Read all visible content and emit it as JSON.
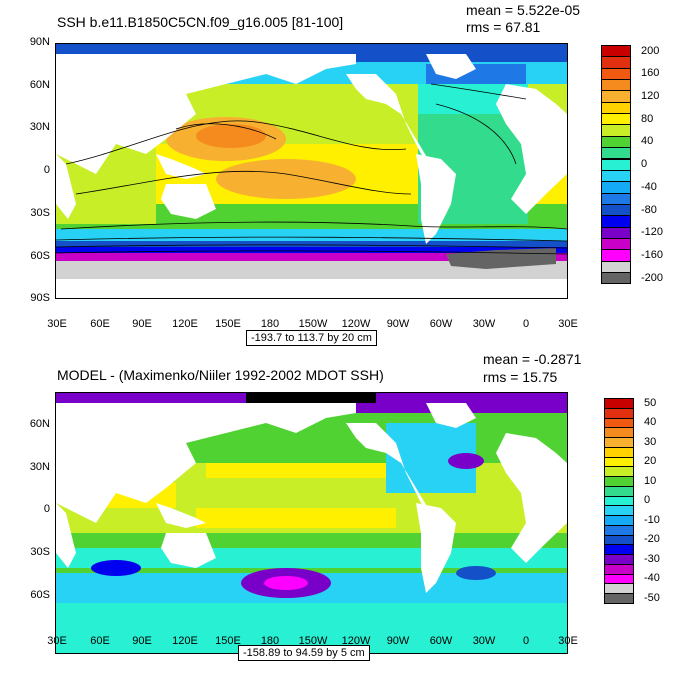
{
  "panels": [
    {
      "title": "SSH b.e11.B1850C5CN.f09_g16.005 [81-100]",
      "mean": "mean = 5.522e-05",
      "rms": "rms = 67.81",
      "range": "-193.7 to 113.7 by 20 cm",
      "lat_labels": [
        "90N",
        "60N",
        "30N",
        "0",
        "30S",
        "60S",
        "90S"
      ],
      "lon_labels": [
        "30E",
        "60E",
        "90E",
        "120E",
        "150E",
        "180",
        "150W",
        "120W",
        "90W",
        "60W",
        "30W",
        "0",
        "30E"
      ],
      "colorbar": {
        "labels": [
          "200",
          "160",
          "120",
          "80",
          "40",
          "0",
          "-40",
          "-80",
          "-120",
          "-160",
          "-200"
        ],
        "colors": [
          "#c80000",
          "#e03010",
          "#f05a10",
          "#f58a1e",
          "#f8b030",
          "#ffd200",
          "#fff000",
          "#c8ee28",
          "#50d232",
          "#32dc8c",
          "#28f0d2",
          "#28d2f5",
          "#14aaf5",
          "#1e78e6",
          "#1450c8",
          "#0000f0",
          "#7800c8",
          "#c800c8",
          "#ff00ff",
          "#d2d2d2",
          "#646464"
        ]
      }
    },
    {
      "title": "MODEL - (Maximenko/Niiler 1992-2002 MDOT SSH)",
      "mean": "mean = -0.2871",
      "rms": "rms = 15.75",
      "range": "-158.89 to 94.59 by 5 cm",
      "lat_labels": [
        "60N",
        "30N",
        "0",
        "30S",
        "60S"
      ],
      "lon_labels": [
        "30E",
        "60E",
        "90E",
        "120E",
        "150E",
        "180",
        "150W",
        "120W",
        "90W",
        "60W",
        "30W",
        "0",
        "30E"
      ],
      "colorbar": {
        "labels": [
          "50",
          "40",
          "30",
          "20",
          "10",
          "0",
          "-10",
          "-20",
          "-30",
          "-40",
          "-50"
        ],
        "colors": [
          "#c80000",
          "#e03010",
          "#f05a10",
          "#f58a1e",
          "#f8b030",
          "#ffd200",
          "#fff000",
          "#c8ee28",
          "#50d232",
          "#32dc8c",
          "#28f0d2",
          "#28d2f5",
          "#14aaf5",
          "#1e78e6",
          "#1450c8",
          "#0000f0",
          "#7800c8",
          "#c800c8",
          "#ff00ff",
          "#d2d2d2",
          "#646464"
        ]
      }
    }
  ]
}
